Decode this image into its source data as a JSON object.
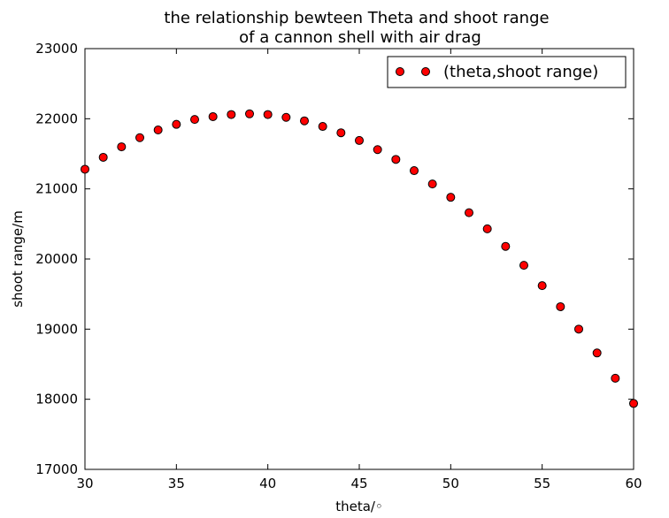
{
  "chart_data": {
    "type": "scatter",
    "title_line1": "the relationship bewteen Theta and shoot range",
    "title_line2": "of a cannon shell with air drag",
    "xlabel": "theta/◦",
    "ylabel": "shoot range/m",
    "xlim": [
      30,
      60
    ],
    "ylim": [
      17000,
      23000
    ],
    "x_ticks": [
      30,
      35,
      40,
      45,
      50,
      55,
      60
    ],
    "y_ticks": [
      17000,
      18000,
      19000,
      20000,
      21000,
      22000,
      23000
    ],
    "grid": false,
    "legend_position": "top-right",
    "marker_color": "#ff0000",
    "marker_edge_color": "#000000",
    "series": [
      {
        "name": "(theta,shoot range)",
        "x": [
          30,
          31,
          32,
          33,
          34,
          35,
          36,
          37,
          38,
          39,
          40,
          41,
          42,
          43,
          44,
          45,
          46,
          47,
          48,
          49,
          50,
          51,
          52,
          53,
          54,
          55,
          56,
          57,
          58,
          59,
          60
        ],
        "y": [
          21280,
          21450,
          21600,
          21730,
          21840,
          21920,
          21990,
          22030,
          22060,
          22070,
          22060,
          22020,
          21970,
          21890,
          21800,
          21690,
          21560,
          21420,
          21260,
          21070,
          20880,
          20660,
          20430,
          20180,
          19910,
          19620,
          19320,
          19000,
          18660,
          18300,
          17940
        ]
      }
    ]
  }
}
